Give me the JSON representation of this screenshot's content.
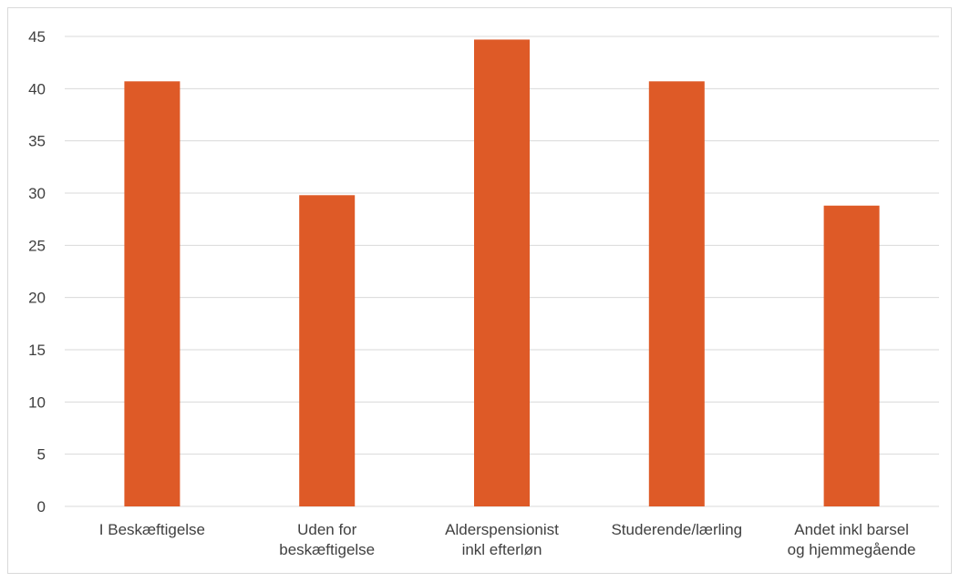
{
  "chart_data": {
    "type": "bar",
    "categories": [
      "I Beskæftigelse",
      "Uden for beskæftigelse",
      "Alderspensionist inkl efterløn",
      "Studerende/lærling",
      "Andet inkl barsel og hjemmegående"
    ],
    "category_lines": [
      [
        "I Beskæftigelse"
      ],
      [
        "Uden for",
        "beskæftigelse"
      ],
      [
        "Alderspensionist",
        "inkl efterløn"
      ],
      [
        "Studerende/lærling"
      ],
      [
        "Andet inkl barsel",
        "og hjemmegående"
      ]
    ],
    "values": [
      40.7,
      29.8,
      44.7,
      40.7,
      28.8
    ],
    "yticks": [
      "0",
      "5",
      "10",
      "15",
      "20",
      "25",
      "30",
      "35",
      "40",
      "45"
    ],
    "ylim": [
      0,
      45
    ],
    "title": "",
    "xlabel": "",
    "ylabel": "",
    "grid": true,
    "legend": "none",
    "colors": {
      "bar": "#de5a27",
      "grid": "#d9d9d9",
      "text": "#404040"
    }
  }
}
